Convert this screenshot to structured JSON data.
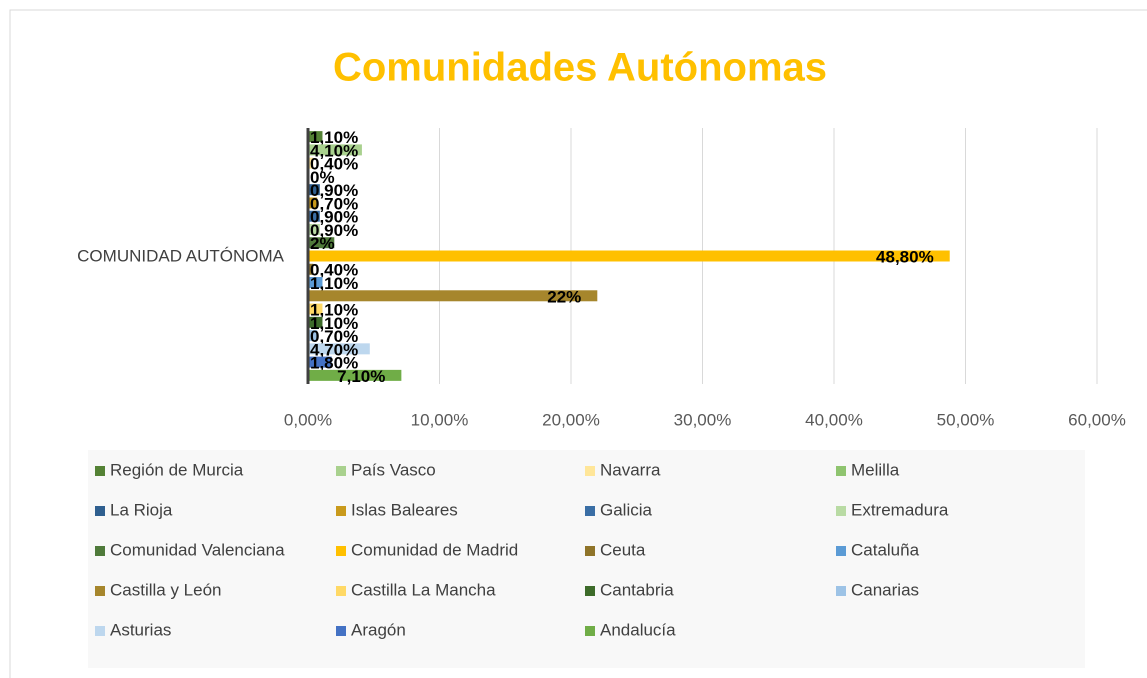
{
  "chart_data": {
    "type": "barh",
    "title": "Comunidades Autónomas",
    "categories": [
      "COMUNIDAD AUTÓNOMA"
    ],
    "series": [
      {
        "name": "Región de Murcia",
        "color": "#548235",
        "values": [
          1.1
        ],
        "value_labels": [
          "1,10%"
        ]
      },
      {
        "name": "País Vasco",
        "color": "#a9d18e",
        "values": [
          4.1
        ],
        "value_labels": [
          "4,10%"
        ]
      },
      {
        "name": "Navarra",
        "color": "#ffe699",
        "values": [
          0.4
        ],
        "value_labels": [
          "0,40%"
        ]
      },
      {
        "name": "Melilla",
        "color": "#8fc46f",
        "values": [
          0
        ],
        "value_labels": [
          "0%"
        ]
      },
      {
        "name": "La Rioja",
        "color": "#2f5f8f",
        "values": [
          0.9
        ],
        "value_labels": [
          "0,90%"
        ]
      },
      {
        "name": "Islas Baleares",
        "color": "#c99a1c",
        "values": [
          0.7
        ],
        "value_labels": [
          "0,70%"
        ]
      },
      {
        "name": "Galicia",
        "color": "#3a6ea5",
        "values": [
          0.9
        ],
        "value_labels": [
          "0,90%"
        ]
      },
      {
        "name": "Extremadura",
        "color": "#b9dba4",
        "values": [
          0.9
        ],
        "value_labels": [
          "0,90%"
        ]
      },
      {
        "name": "Comunidad Valenciana",
        "color": "#4f7a3a",
        "values": [
          2
        ],
        "value_labels": [
          "2%"
        ]
      },
      {
        "name": "Comunidad de Madrid",
        "color": "#ffc000",
        "values": [
          48.8
        ],
        "value_labels": [
          "48,80%"
        ]
      },
      {
        "name": "Ceuta",
        "color": "#8f7429",
        "values": [
          0.4
        ],
        "value_labels": [
          "0,40%"
        ]
      },
      {
        "name": "Cataluña",
        "color": "#5b9bd5",
        "values": [
          1.1
        ],
        "value_labels": [
          "1,10%"
        ]
      },
      {
        "name": "Castilla y León",
        "color": "#a6862c",
        "values": [
          22
        ],
        "value_labels": [
          "22%"
        ]
      },
      {
        "name": "Castilla La Mancha",
        "color": "#ffd966",
        "values": [
          1.1
        ],
        "value_labels": [
          "1,10%"
        ]
      },
      {
        "name": "Cantabria",
        "color": "#3d6b2a",
        "values": [
          1.1
        ],
        "value_labels": [
          "1,10%"
        ]
      },
      {
        "name": "Canarias",
        "color": "#9dc3e6",
        "values": [
          0.7
        ],
        "value_labels": [
          "0,70%"
        ]
      },
      {
        "name": "Asturias",
        "color": "#bdd7ee",
        "values": [
          4.7
        ],
        "value_labels": [
          "4,70%"
        ]
      },
      {
        "name": "Aragón",
        "color": "#4472c4",
        "values": [
          1.8
        ],
        "value_labels": [
          "1,80%"
        ]
      },
      {
        "name": "Andalucía",
        "color": "#70ad47",
        "values": [
          7.1
        ],
        "value_labels": [
          "7,10%"
        ]
      }
    ],
    "xlim": [
      0,
      60
    ],
    "xticks": [
      {
        "value": 0,
        "label": "0,00%"
      },
      {
        "value": 10,
        "label": "10,00%"
      },
      {
        "value": 20,
        "label": "20,00%"
      },
      {
        "value": 30,
        "label": "30,00%"
      },
      {
        "value": 40,
        "label": "40,00%"
      },
      {
        "value": 50,
        "label": "50,00%"
      },
      {
        "value": 60,
        "label": "60,00%"
      }
    ],
    "grid": true,
    "legend": "bottom"
  }
}
